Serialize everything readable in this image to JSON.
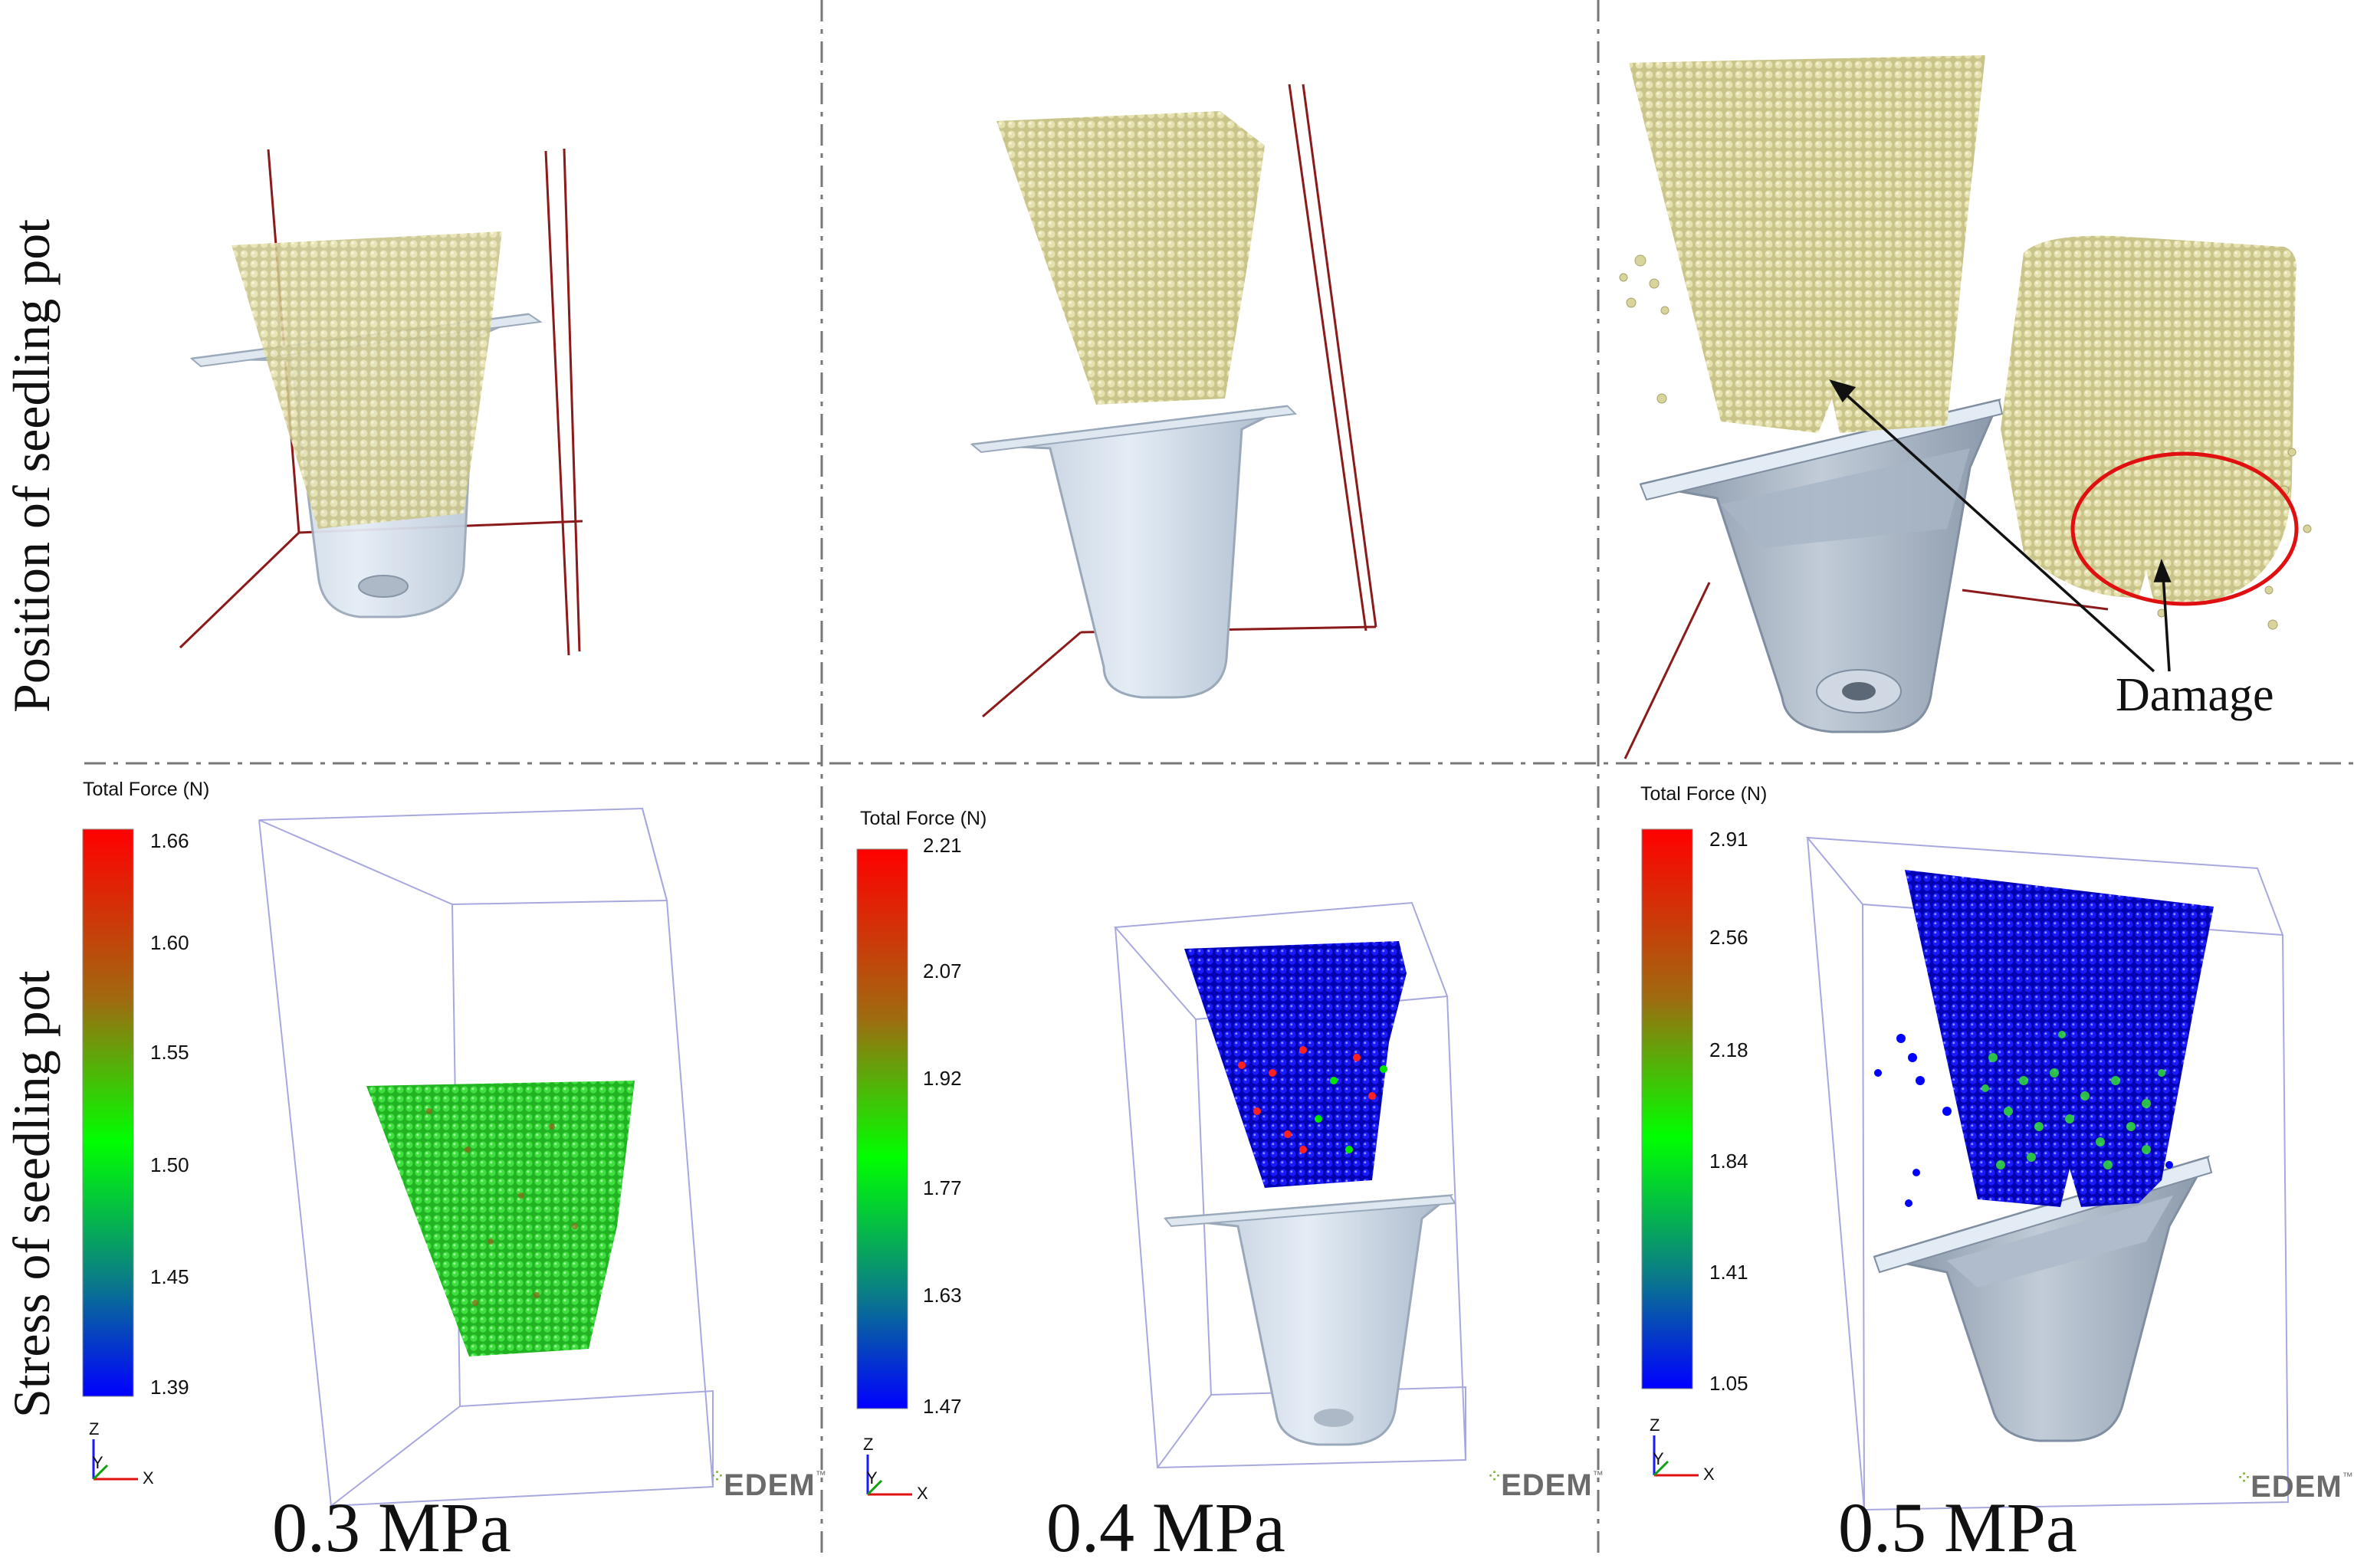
{
  "rows": {
    "top_label": "Position of seedling pot",
    "bottom_label": "Stress of seedling pot"
  },
  "annotation": {
    "damage": "Damage"
  },
  "panels": [
    {
      "pressure": "0.3 MPa",
      "colorbar": {
        "title": "Total Force (N)",
        "ticks": [
          "1.66",
          "1.60",
          "1.55",
          "1.50",
          "1.45",
          "1.39"
        ]
      }
    },
    {
      "pressure": "0.4 MPa",
      "colorbar": {
        "title": "Total Force (N)",
        "ticks": [
          "2.21",
          "2.07",
          "1.92",
          "1.77",
          "1.63",
          "1.47"
        ]
      }
    },
    {
      "pressure": "0.5 MPa",
      "colorbar": {
        "title": "Total Force (N)",
        "ticks": [
          "2.91",
          "2.56",
          "2.18",
          "1.84",
          "1.41",
          "1.05"
        ]
      }
    }
  ],
  "axes": {
    "z": "Z",
    "y": "Y",
    "x": "X"
  },
  "logo": {
    "name": "EDEM",
    "tm": "™"
  },
  "colors": {
    "particle_yellow": "#d8d49c",
    "force_red": "#ff0000",
    "force_green": "#00e600",
    "force_blue": "#0000ff",
    "pot_fill": "#c9d6e6",
    "frame_line": "#8b1a1a"
  }
}
